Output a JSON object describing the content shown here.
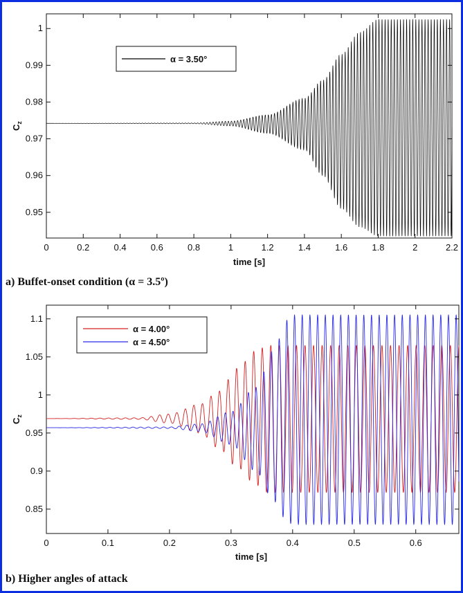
{
  "chart_data": [
    {
      "type": "line",
      "caption": "a) Buffet-onset condition (α = 3.5º)",
      "xlabel": "time [s]",
      "ylabel": "C",
      "ylabel_sub": "z",
      "xlim": [
        0,
        2.2
      ],
      "ylim": [
        0.943,
        1.004
      ],
      "xticks": [
        "0",
        "0.2",
        "0.4",
        "0.6",
        "0.8",
        "1",
        "1.2",
        "1.4",
        "1.6",
        "1.8",
        "2",
        "2.2"
      ],
      "yticks": [
        "0.95",
        "0.96",
        "0.97",
        "0.98",
        "0.99",
        "1"
      ],
      "legend_position": "top-left",
      "series": [
        {
          "name": "α = 3.50°",
          "color": "#000000",
          "mean": 0.9742,
          "frequency_hz": 60,
          "upper_envelope": {
            "x": [
              0,
              0.8,
              1.0,
              1.2,
              1.4,
              1.5,
              1.6,
              1.7,
              1.8,
              2.2
            ],
            "y": [
              0.9742,
              0.9743,
              0.9748,
              0.9765,
              0.981,
              0.986,
              0.993,
              0.999,
              1.0025,
              1.0025
            ]
          },
          "lower_envelope": {
            "x": [
              0,
              0.8,
              1.0,
              1.2,
              1.4,
              1.5,
              1.6,
              1.7,
              1.8,
              2.2
            ],
            "y": [
              0.9742,
              0.9741,
              0.9735,
              0.9715,
              0.967,
              0.96,
              0.951,
              0.946,
              0.9435,
              0.9435
            ]
          }
        }
      ]
    },
    {
      "type": "line",
      "caption": "b) Higher angles of attack",
      "xlabel": "time [s]",
      "ylabel": "C",
      "ylabel_sub": "z",
      "xlim": [
        0,
        0.67
      ],
      "ylim": [
        0.818,
        1.118
      ],
      "xticks": [
        "0",
        "0.1",
        "0.2",
        "0.3",
        "0.4",
        "0.5",
        "0.6"
      ],
      "yticks": [
        "0.85",
        "0.9",
        "0.95",
        "1",
        "1.05",
        "1.1"
      ],
      "legend_position": "top-left",
      "series": [
        {
          "name": "α = 4.00°",
          "color": "#d42020",
          "mean": 0.969,
          "frequency_hz": 72,
          "upper_envelope": {
            "x": [
              0,
              0.15,
              0.2,
              0.25,
              0.28,
              0.31,
              0.34,
              0.36,
              0.67
            ],
            "y": [
              0.969,
              0.97,
              0.975,
              0.988,
              1.005,
              1.035,
              1.058,
              1.065,
              1.065
            ]
          },
          "lower_envelope": {
            "x": [
              0,
              0.15,
              0.2,
              0.25,
              0.28,
              0.31,
              0.34,
              0.36,
              0.67
            ],
            "y": [
              0.969,
              0.968,
              0.963,
              0.95,
              0.93,
              0.905,
              0.882,
              0.872,
              0.872
            ]
          }
        },
        {
          "name": "α = 4.50°",
          "color": "#2828e6",
          "mean": 0.957,
          "frequency_hz": 80,
          "upper_envelope": {
            "x": [
              0,
              0.2,
              0.25,
              0.3,
              0.34,
              0.37,
              0.39,
              0.4,
              0.67
            ],
            "y": [
              0.957,
              0.958,
              0.962,
              0.978,
              1.01,
              1.06,
              1.098,
              1.105,
              1.105
            ]
          },
          "lower_envelope": {
            "x": [
              0,
              0.2,
              0.25,
              0.3,
              0.34,
              0.37,
              0.39,
              0.4,
              0.67
            ],
            "y": [
              0.957,
              0.956,
              0.952,
              0.935,
              0.9,
              0.86,
              0.835,
              0.83,
              0.83
            ]
          }
        }
      ]
    }
  ]
}
